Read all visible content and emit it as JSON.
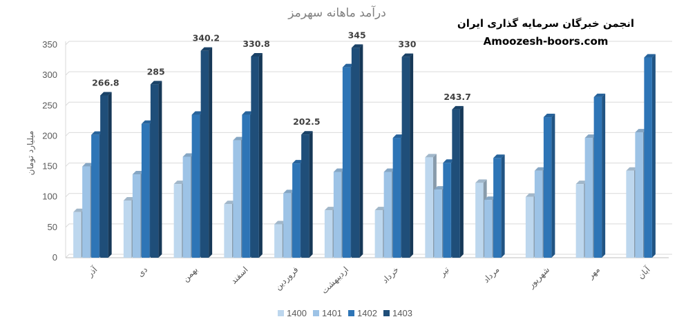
{
  "chart_data": {
    "type": "bar",
    "title": "درآمد ماهانه سهرمز",
    "ylabel": "میلیارد تومان",
    "ylim": [
      0,
      350
    ],
    "yticks": [
      0,
      50,
      100,
      150,
      200,
      250,
      300,
      350
    ],
    "grid": true,
    "legend_position": "bottom",
    "categories": [
      "آذر",
      "دی",
      "بهمن",
      "اسفند",
      "فروردین",
      "اردیبهشت",
      "خرداد",
      "تیر",
      "مرداد",
      "شهریور",
      "مهر",
      "آبان"
    ],
    "series": [
      {
        "name": "1400",
        "color": "#bdd7ee",
        "values": [
          75,
          94,
          121,
          88,
          55,
          78,
          78,
          165,
          123,
          100,
          121,
          143
        ]
      },
      {
        "name": "1401",
        "color": "#9dc3e6",
        "values": [
          150,
          137,
          166,
          193,
          106,
          141,
          141,
          112,
          95,
          143,
          197,
          206
        ]
      },
      {
        "name": "1402",
        "color": "#2e75b6",
        "values": [
          202,
          220,
          235,
          235,
          155,
          313,
          197,
          156,
          164,
          231,
          264,
          329
        ]
      },
      {
        "name": "1403",
        "color": "#1f4e79",
        "values": [
          266.8,
          285,
          340.2,
          330.8,
          202.5,
          345,
          330,
          243.7,
          null,
          null,
          null,
          null
        ]
      }
    ],
    "data_labels": [
      "266.8",
      "285",
      "340.2",
      "330.8",
      "202.5",
      "345",
      "330",
      "243.7"
    ]
  },
  "watermark": {
    "line1": "انجمن خبرگان سرمایه گذاری ایران",
    "line2": "Amoozesh-boors.com"
  }
}
